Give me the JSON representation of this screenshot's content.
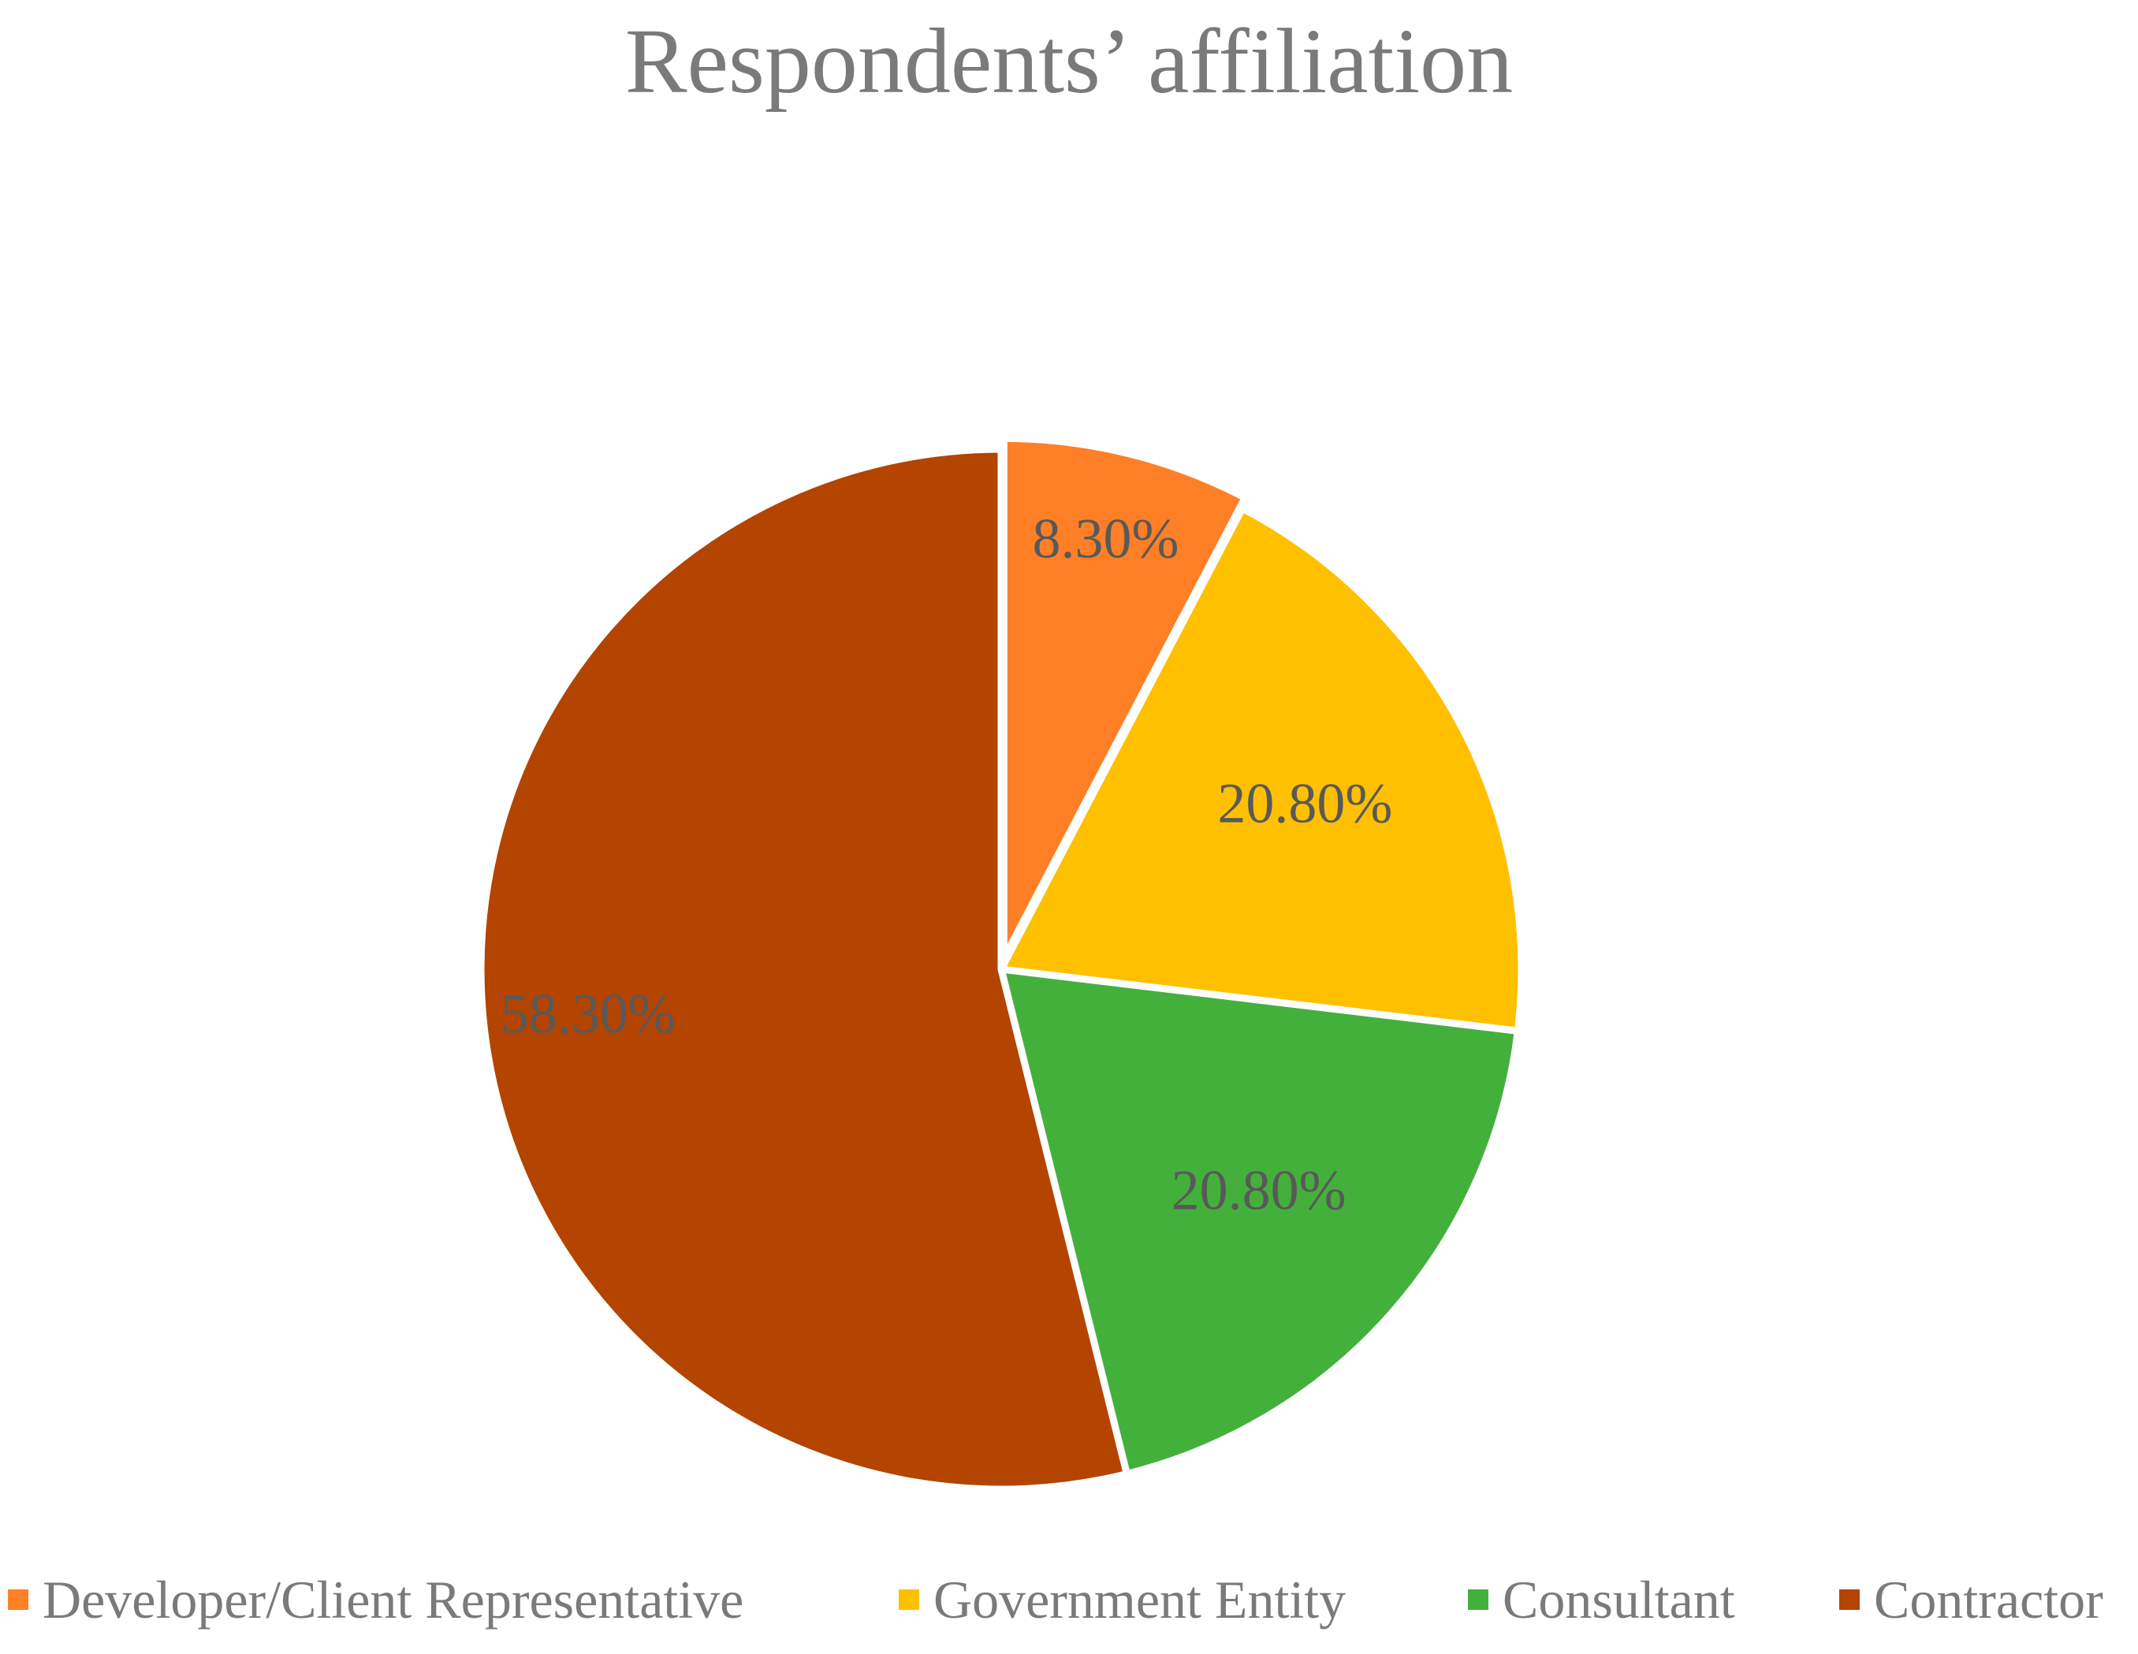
{
  "chart_data": {
    "type": "pie",
    "title": "Respondents’ affiliation",
    "categories": [
      "Developer/Client Representative",
      "Government Entity",
      "Consultant",
      "Contractor"
    ],
    "values": [
      8.3,
      20.8,
      20.8,
      58.3
    ],
    "data_labels": [
      "8.30%",
      "20.80%",
      "20.80%",
      "58.30%"
    ],
    "colors": [
      "#FF7F27",
      "#FFC000",
      "#44B03C",
      "#B34500"
    ],
    "legend_position": "bottom",
    "start_angle": "12 o'clock",
    "direction": "clockwise"
  },
  "legend": {
    "items": [
      {
        "label": "Developer/Client Representative",
        "color": "#FF7F27"
      },
      {
        "label": "Government Entity",
        "color": "#FFC000"
      },
      {
        "label": "Consultant",
        "color": "#44B03C"
      },
      {
        "label": "Contractor",
        "color": "#B34500"
      }
    ]
  }
}
